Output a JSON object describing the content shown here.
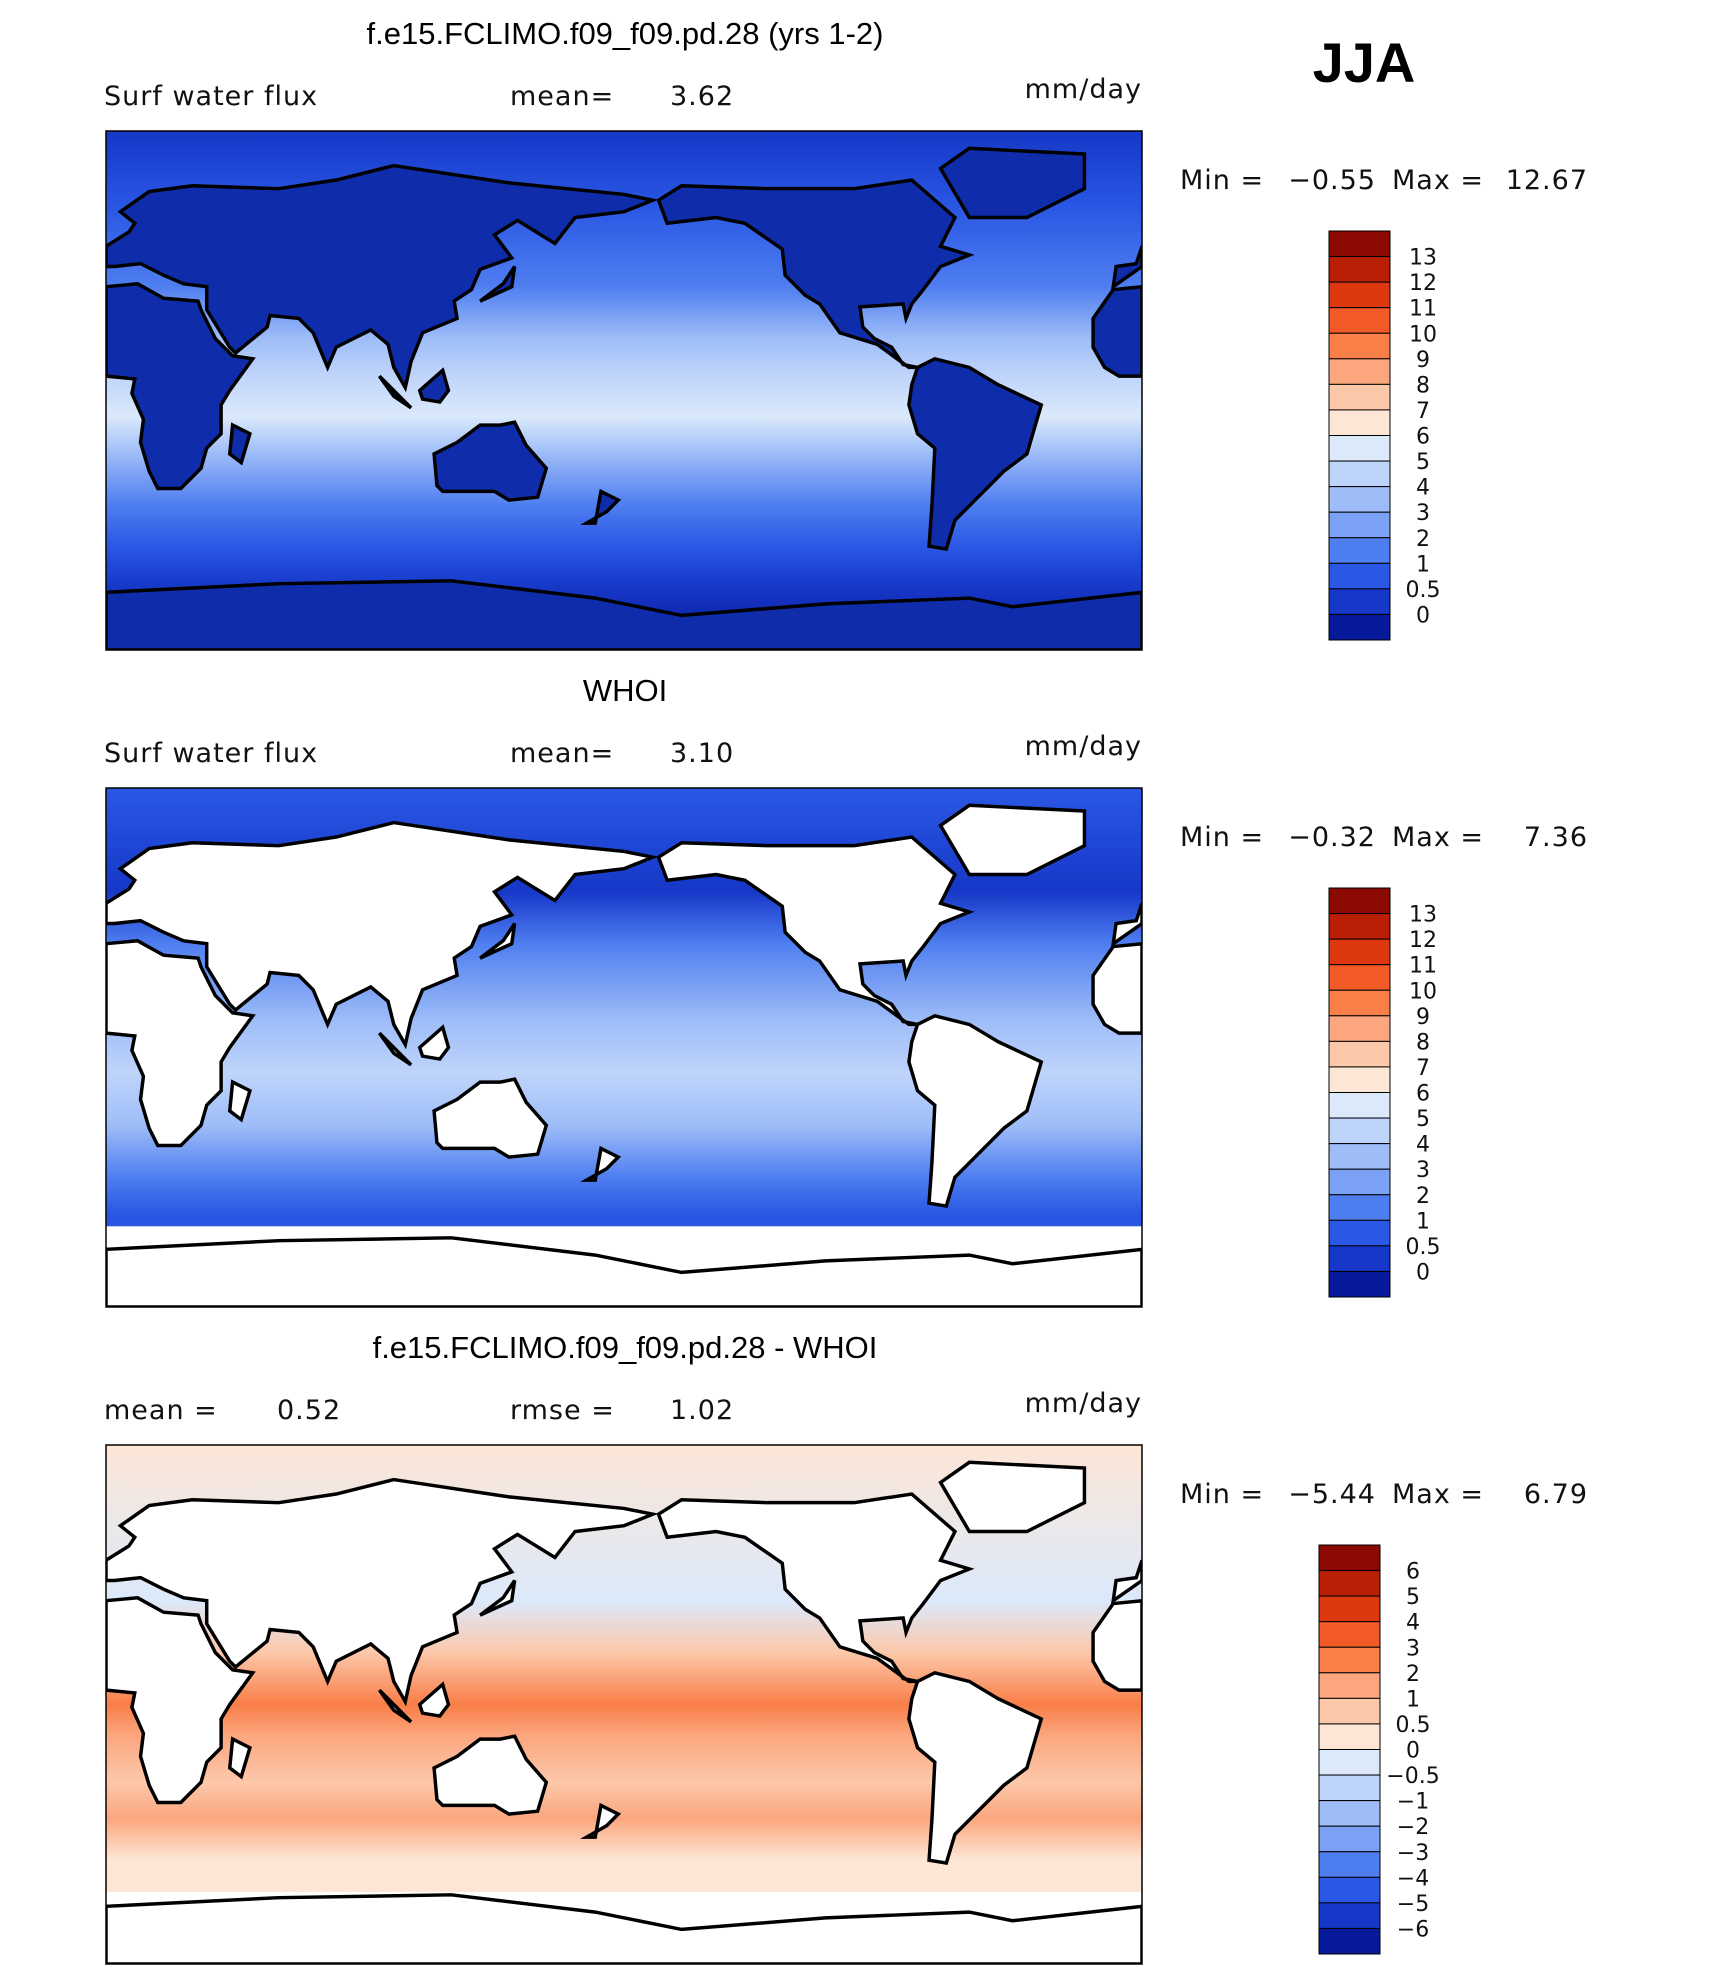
{
  "season": "JJA",
  "panels": [
    {
      "title": "f.e15.FCLIMO.f09_f09.pd.28 (yrs 1-2)",
      "left": "Surf water flux",
      "mid": "mean=",
      "mid_value": "3.62",
      "units": "mm/day",
      "min_label": "Min =",
      "min_value": "−0.55",
      "max_label": "Max =",
      "max_value": "12.67",
      "colorbar_labels": [
        "13",
        "12",
        "11",
        "10",
        "9",
        "8",
        "7",
        "6",
        "5",
        "4",
        "3",
        "2",
        "1",
        "0.5",
        "0"
      ],
      "colorbar_colors": [
        "#8c0a02",
        "#b81f04",
        "#dd3810",
        "#f25a26",
        "#f97e48",
        "#fba67e",
        "#fcc8aa",
        "#fde6d6",
        "#dbe9fb",
        "#bfd4fb",
        "#9ebdf8",
        "#7aa1f4",
        "#4f7ef0",
        "#2a58e4",
        "#1637c7",
        "#071a99"
      ]
    },
    {
      "title": "WHOI",
      "left": "Surf water flux",
      "mid": "mean=",
      "mid_value": "3.10",
      "units": "mm/day",
      "min_label": "Min =",
      "min_value": "−0.32",
      "max_label": "Max =",
      "max_value": "7.36",
      "colorbar_labels": [
        "13",
        "12",
        "11",
        "10",
        "9",
        "8",
        "7",
        "6",
        "5",
        "4",
        "3",
        "2",
        "1",
        "0.5",
        "0"
      ],
      "colorbar_colors": [
        "#8c0a02",
        "#b81f04",
        "#dd3810",
        "#f25a26",
        "#f97e48",
        "#fba67e",
        "#fcc8aa",
        "#fde6d6",
        "#dbe9fb",
        "#bfd4fb",
        "#9ebdf8",
        "#7aa1f4",
        "#4f7ef0",
        "#2a58e4",
        "#1637c7",
        "#071a99"
      ]
    },
    {
      "title": "f.e15.FCLIMO.f09_f09.pd.28 - WHOI",
      "left": "mean =",
      "left_value": "0.52",
      "mid": "rmse =",
      "mid_value": "1.02",
      "units": "mm/day",
      "min_label": "Min =",
      "min_value": "−5.44",
      "max_label": "Max =",
      "max_value": "6.79",
      "colorbar_labels": [
        "6",
        "5",
        "4",
        "3",
        "2",
        "1",
        "0.5",
        "0",
        "−0.5",
        "−1",
        "−2",
        "−3",
        "−4",
        "−5",
        "−6"
      ],
      "colorbar_colors": [
        "#8c0a02",
        "#b81f04",
        "#dd3810",
        "#f25a26",
        "#f97e48",
        "#fba67e",
        "#fcc8aa",
        "#fde6d6",
        "#dbe9fb",
        "#bfd4fb",
        "#9ebdf8",
        "#7aa1f4",
        "#4f7ef0",
        "#2a58e4",
        "#1637c7",
        "#071a99"
      ]
    }
  ]
}
